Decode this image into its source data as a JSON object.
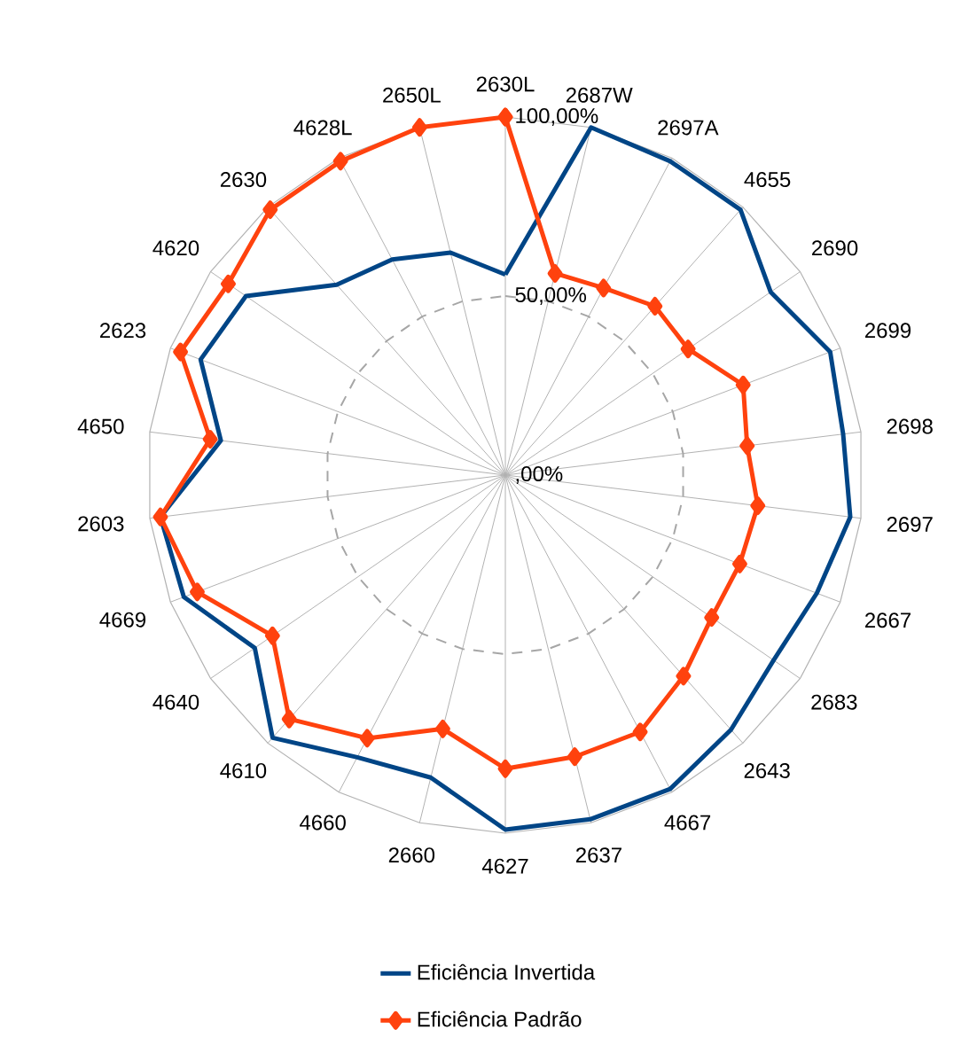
{
  "chart_data": {
    "type": "radar",
    "categories": [
      "2630L",
      "2687W",
      "2697A",
      "4655",
      "2690",
      "2699",
      "2698",
      "2697",
      "2667",
      "2683",
      "2643",
      "4667",
      "2637",
      "4627",
      "2660",
      "4660",
      "4610",
      "4640",
      "4669",
      "2603",
      "4650",
      "2623",
      "4620",
      "2630",
      "4628L",
      "2650L"
    ],
    "ylim": [
      0,
      100
    ],
    "yticks": [
      {
        "value": 0,
        "label": ",00%"
      },
      {
        "value": 50,
        "label": "50,00%"
      },
      {
        "value": 100,
        "label": "100,00%"
      }
    ],
    "grid": true,
    "legend": "bottom",
    "series": [
      {
        "name": "Eficiência Invertida",
        "color": "#004586",
        "marker": "none",
        "values": [
          56,
          100,
          99,
          99,
          90,
          97,
          95,
          97,
          93,
          91,
          95,
          99,
          99,
          99,
          87,
          89,
          98,
          85,
          96,
          97,
          80,
          91,
          88,
          71,
          68,
          64
        ]
      },
      {
        "name": "Eficiência Padrão",
        "color": "#ff420e",
        "marker": "diamond",
        "values": [
          100,
          58,
          59,
          63,
          62,
          71,
          68,
          71,
          70,
          70,
          75,
          81,
          81,
          82,
          73,
          83,
          91,
          79,
          92,
          97,
          83,
          97,
          94,
          99,
          99,
          100
        ]
      }
    ]
  }
}
